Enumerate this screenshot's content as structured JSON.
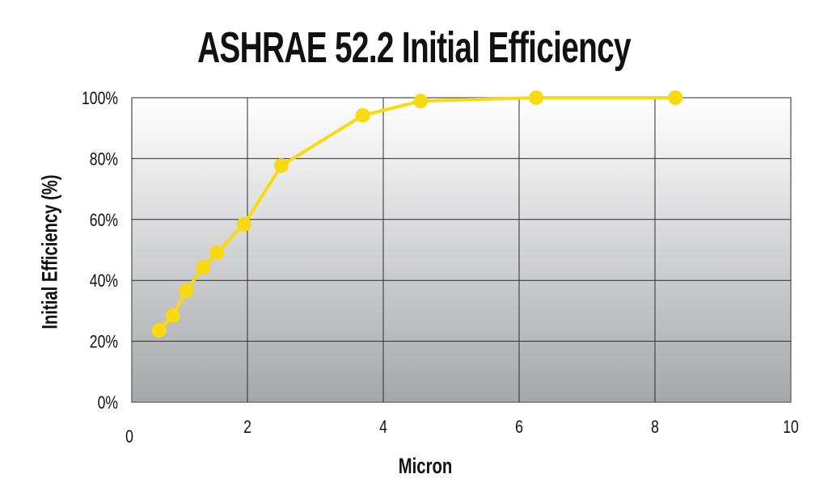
{
  "chart_data": {
    "type": "line",
    "title": "ASHRAE 52.2 Initial Efficiency",
    "xlabel": "Micron",
    "ylabel": "Initial Efficiency (%)",
    "xlim": [
      0,
      10
    ],
    "ylim": [
      0,
      100
    ],
    "xticks": [
      0,
      2,
      4,
      6,
      8,
      10
    ],
    "xtick_labels": [
      "0",
      "2",
      "4",
      "6",
      "8",
      "10"
    ],
    "yticks": [
      0,
      20,
      40,
      60,
      80,
      100
    ],
    "ytick_labels": [
      "0%",
      "20%",
      "40%",
      "60%",
      "80%",
      "100%"
    ],
    "grid": true,
    "series": [
      {
        "name": "Initial Efficiency",
        "color": "#f9d90f",
        "x": [
          0.7,
          0.9,
          1.1,
          1.35,
          1.55,
          1.95,
          2.5,
          3.7,
          4.55,
          6.25,
          8.3
        ],
        "y": [
          23.6,
          28.4,
          36.6,
          44.3,
          49.1,
          58.4,
          77.7,
          94.2,
          98.9,
          100,
          100
        ]
      }
    ]
  }
}
